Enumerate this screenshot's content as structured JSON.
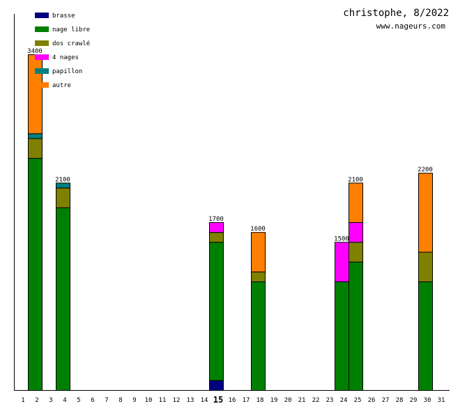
{
  "chart_data": {
    "type": "bar",
    "stacked": true,
    "title": "christophe, 8/2022",
    "subtitle": "www.nageurs.com",
    "xlabel": "",
    "ylabel": "",
    "ylim": [
      0,
      3400
    ],
    "legend_position": "top-left",
    "highlight_day": 15,
    "categories": [
      1,
      2,
      3,
      4,
      5,
      6,
      7,
      8,
      9,
      10,
      11,
      12,
      13,
      14,
      15,
      16,
      17,
      18,
      19,
      20,
      21,
      22,
      23,
      24,
      25,
      26,
      27,
      28,
      29,
      30,
      31
    ],
    "series": [
      {
        "name": "brasse",
        "color": "#000080",
        "values": [
          0,
          0,
          0,
          0,
          0,
          0,
          0,
          0,
          0,
          0,
          0,
          0,
          0,
          0,
          100,
          0,
          0,
          0,
          0,
          0,
          0,
          0,
          0,
          0,
          0,
          0,
          0,
          0,
          0,
          0,
          0
        ]
      },
      {
        "name": "nage libre",
        "color": "#008000",
        "values": [
          0,
          2350,
          0,
          1850,
          0,
          0,
          0,
          0,
          0,
          0,
          0,
          0,
          0,
          0,
          1400,
          0,
          0,
          1100,
          0,
          0,
          0,
          0,
          0,
          1100,
          1300,
          0,
          0,
          0,
          0,
          1100,
          0
        ]
      },
      {
        "name": "dos crawlé",
        "color": "#808000",
        "values": [
          0,
          200,
          0,
          200,
          0,
          0,
          0,
          0,
          0,
          0,
          0,
          0,
          0,
          0,
          100,
          0,
          0,
          100,
          0,
          0,
          0,
          0,
          0,
          0,
          200,
          0,
          0,
          0,
          0,
          300,
          0
        ]
      },
      {
        "name": "4 nages",
        "color": "#ff00ff",
        "values": [
          0,
          0,
          0,
          0,
          0,
          0,
          0,
          0,
          0,
          0,
          0,
          0,
          0,
          0,
          100,
          0,
          0,
          0,
          0,
          0,
          0,
          0,
          0,
          400,
          200,
          0,
          0,
          0,
          0,
          0,
          0
        ]
      },
      {
        "name": "papillon",
        "color": "#008080",
        "values": [
          0,
          50,
          0,
          50,
          0,
          0,
          0,
          0,
          0,
          0,
          0,
          0,
          0,
          0,
          0,
          0,
          0,
          0,
          0,
          0,
          0,
          0,
          0,
          0,
          0,
          0,
          0,
          0,
          0,
          0,
          0
        ]
      },
      {
        "name": "autre",
        "color": "#ff8000",
        "values": [
          0,
          800,
          0,
          0,
          0,
          0,
          0,
          0,
          0,
          0,
          0,
          0,
          0,
          0,
          0,
          0,
          0,
          400,
          0,
          0,
          0,
          0,
          0,
          0,
          400,
          0,
          0,
          0,
          0,
          800,
          0
        ]
      }
    ],
    "totals": [
      0,
      3400,
      0,
      2100,
      0,
      0,
      0,
      0,
      0,
      0,
      0,
      0,
      0,
      0,
      1700,
      0,
      0,
      1600,
      0,
      0,
      0,
      0,
      0,
      1500,
      2100,
      0,
      0,
      0,
      0,
      2200,
      0
    ],
    "total_labels": [
      "",
      "3400",
      "",
      "2100",
      "",
      "",
      "",
      "",
      "",
      "",
      "",
      "",
      "",
      "",
      "1700",
      "",
      "",
      "1600",
      "",
      "",
      "",
      "",
      "",
      "1500",
      "2100",
      "",
      "",
      "",
      "",
      "2200",
      ""
    ]
  }
}
